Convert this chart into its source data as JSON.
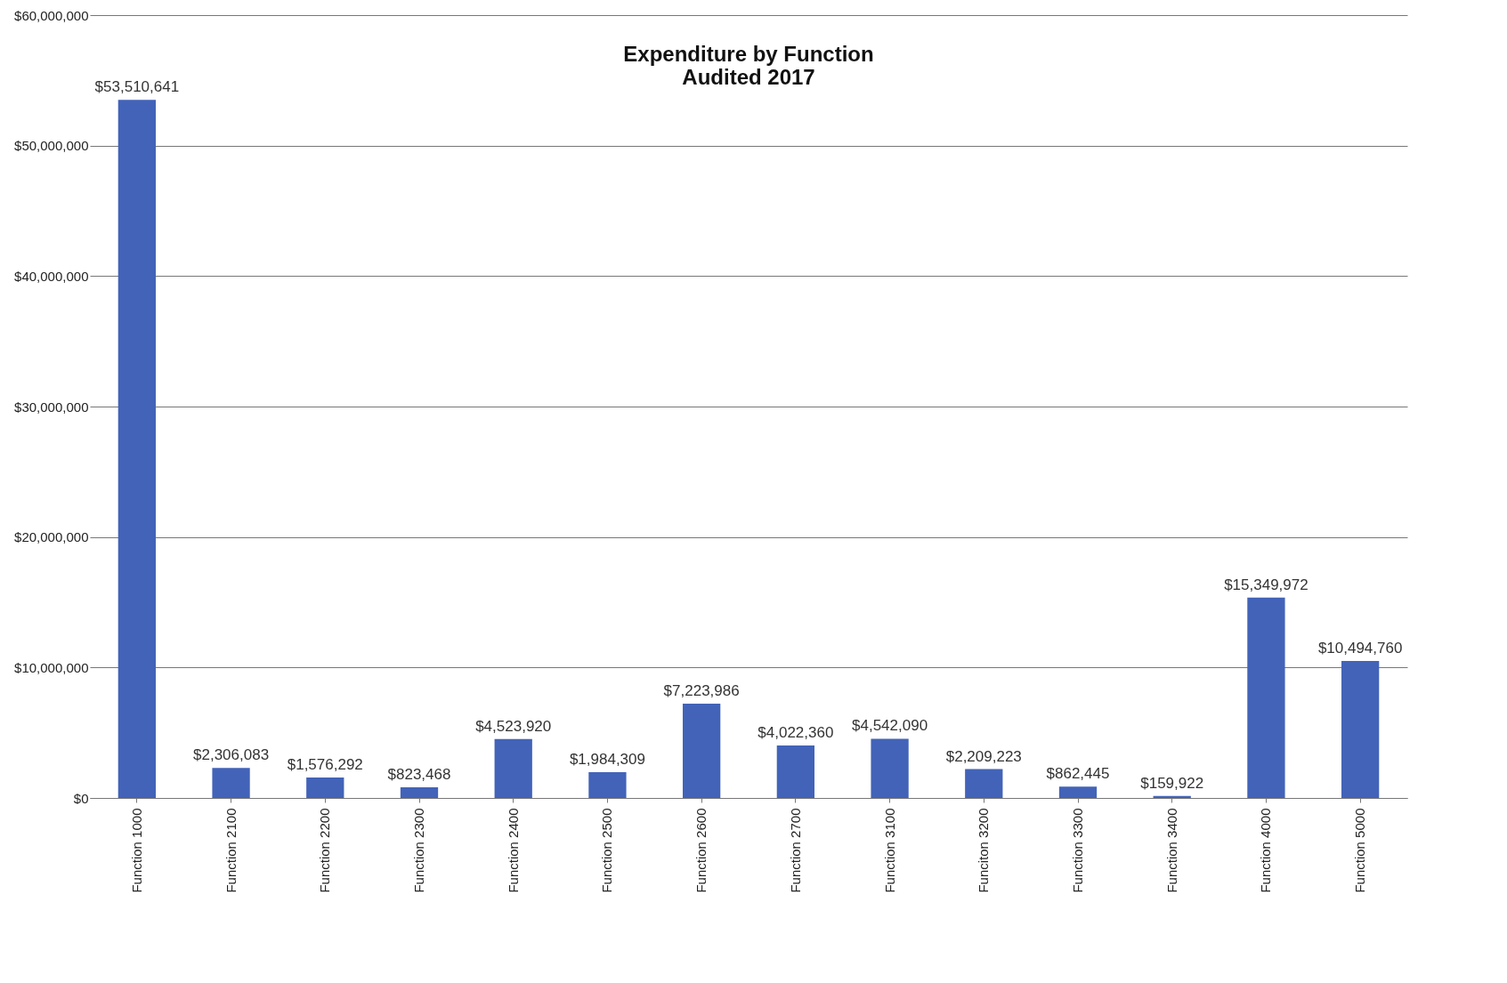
{
  "chart_data": {
    "type": "bar",
    "title": [
      "Expenditure by Function",
      "Audited 2017"
    ],
    "categories": [
      "Function 1000",
      "Function 2100",
      "Function 2200",
      "Function 2300",
      "Function 2400",
      "Function 2500",
      "Function 2600",
      "Function 2700",
      "Function 3100",
      "Funciton 3200",
      "Function 3300",
      "Function 3400",
      "Function 4000",
      "Function 5000"
    ],
    "values": [
      53510641,
      2306083,
      1576292,
      823468,
      4523920,
      1984309,
      7223986,
      4022360,
      4542090,
      2209223,
      862445,
      159922,
      15349972,
      10494760
    ],
    "value_labels": [
      "$53,510,641",
      "$2,306,083",
      "$1,576,292",
      "$823,468",
      "$4,523,920",
      "$1,984,309",
      "$7,223,986",
      "$4,022,360",
      "$4,542,090",
      "$2,209,223",
      "$862,445",
      "$159,922",
      "$15,349,972",
      "$10,494,760"
    ],
    "color": "#4263b8",
    "ylim": [
      0,
      60000000
    ],
    "yticks": [
      {
        "value": 0,
        "label": "$0"
      },
      {
        "value": 10000000,
        "label": "$10,000,000"
      },
      {
        "value": 20000000,
        "label": "$20,000,000"
      },
      {
        "value": 30000000,
        "label": "$30,000,000"
      },
      {
        "value": 40000000,
        "label": "$40,000,000"
      },
      {
        "value": 50000000,
        "label": "$50,000,000"
      },
      {
        "value": 60000000,
        "label": "$60,000,000"
      }
    ],
    "grid": "y"
  }
}
